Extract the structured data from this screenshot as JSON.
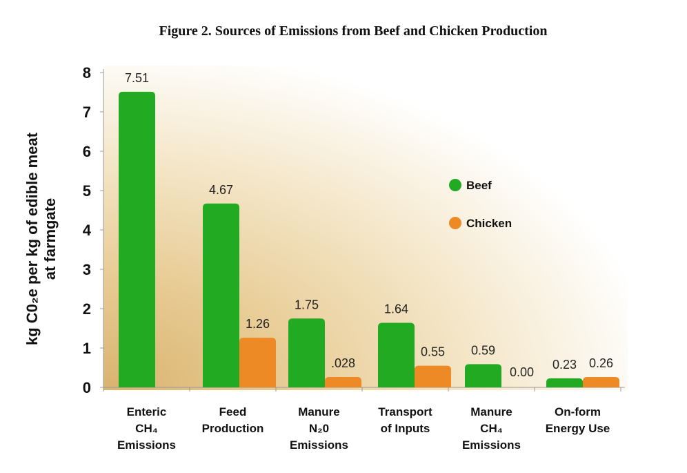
{
  "chart_data": {
    "type": "bar",
    "title": "Figure 2. Sources of Emissions from Beef and Chicken Production",
    "ylabel": "kg C0₂e per kg of edible meat at farmgate",
    "ylabel_line1": "kg C0₂e per kg of edible meat",
    "ylabel_line2": "at farmgate",
    "xlabel": "",
    "ylim": [
      0,
      8
    ],
    "yticks": [
      "0",
      "1",
      "2",
      "3",
      "4",
      "5",
      "6",
      "7",
      "8"
    ],
    "categories": [
      [
        "Enteric",
        "CH₄",
        "Emissions"
      ],
      [
        "Feed",
        "Production"
      ],
      [
        "Manure",
        "N₂0",
        "Emissions"
      ],
      [
        "Transport",
        "of Inputs"
      ],
      [
        "Manure",
        "CH₄",
        "Emissions"
      ],
      [
        "On-form",
        "Energy Use"
      ]
    ],
    "series": [
      {
        "name": "Beef",
        "color": "#22aa22",
        "values": [
          7.51,
          4.67,
          1.75,
          1.64,
          0.59,
          0.23
        ],
        "labels": [
          "7.51",
          "4.67",
          "1.75",
          "1.64",
          "0.59",
          "0.23"
        ]
      },
      {
        "name": "Chicken",
        "color": "#ee8a25",
        "values": [
          null,
          1.26,
          0.028,
          0.55,
          0.0,
          0.26
        ],
        "labels": [
          null,
          "1.26",
          ".028",
          "0.55",
          "0.00",
          "0.26"
        ]
      }
    ],
    "legend": "right"
  }
}
